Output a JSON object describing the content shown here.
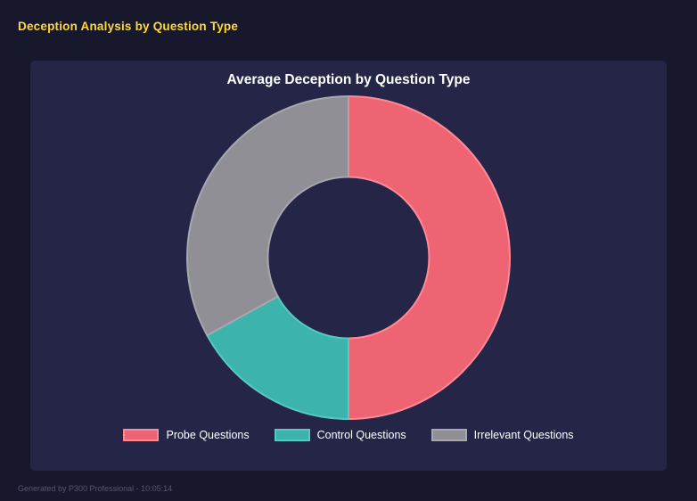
{
  "page": {
    "title": "Deception Analysis by Question Type",
    "footer": "Generated by P300 Professional - 10:05:14"
  },
  "chart_data": {
    "type": "pie",
    "style": "doughnut",
    "title": "Average Deception by Question Type",
    "categories": [
      "Probe Questions",
      "Control Questions",
      "Irrelevant Questions"
    ],
    "values": [
      50,
      17,
      33
    ],
    "colors": [
      "#ee6473",
      "#3cb4ad",
      "#8f8f95"
    ],
    "border_colors": [
      "#ff8a97",
      "#55c9c2",
      "#a7a7ad"
    ],
    "cutout_percent": 50,
    "start_angle_deg": 0,
    "legend_position": "bottom"
  },
  "theme": {
    "page_bg": "#18182d",
    "panel_bg": "#252547",
    "accent_yellow": "#ffd83a",
    "text_white": "#ffffff",
    "footer_gray": "#55556e"
  }
}
